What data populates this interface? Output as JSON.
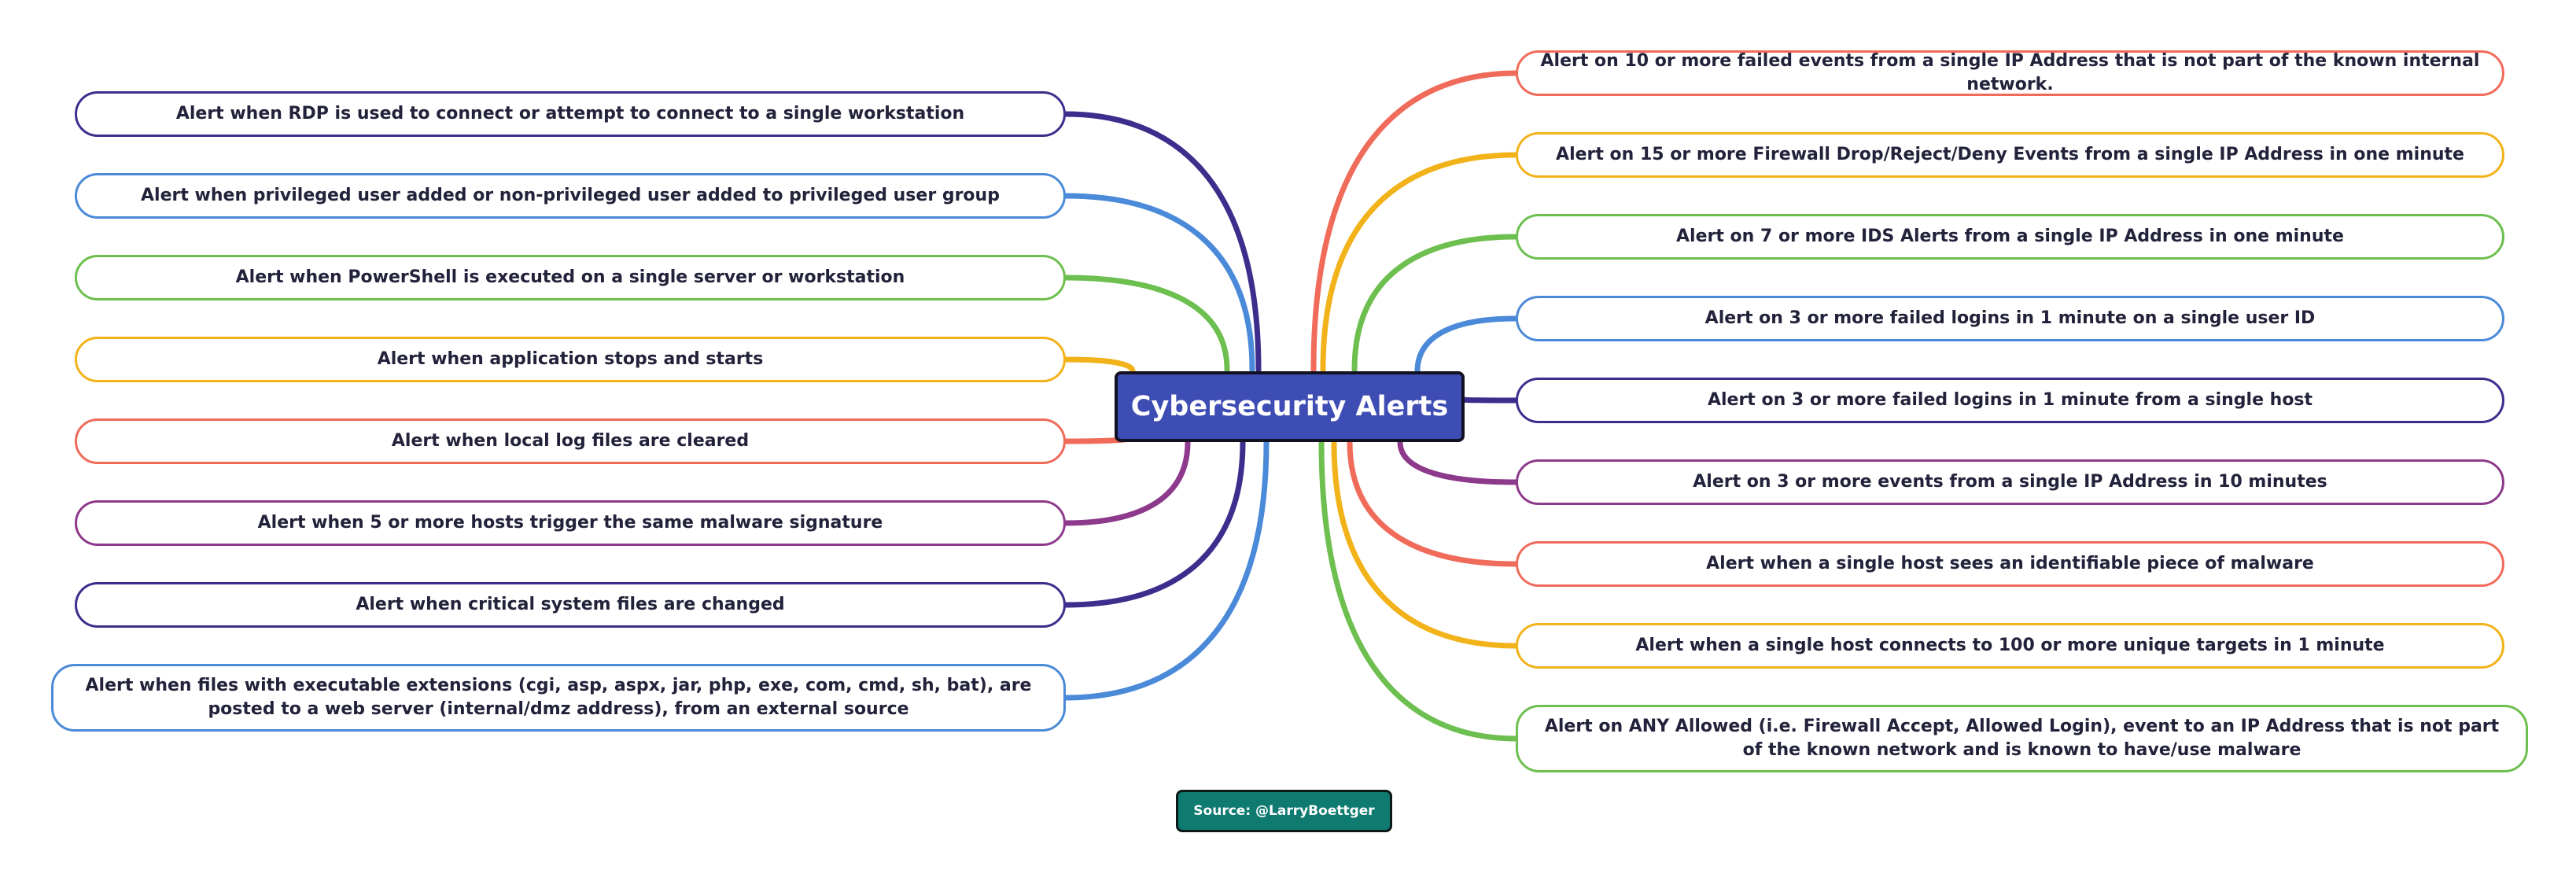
{
  "title": "Cybersecurity Alerts",
  "source": "Source: @LarryBoettger",
  "colors": {
    "center_fill": "#3e4db3",
    "source_fill": "#0e7a70",
    "navy": "#3c2e8c",
    "blue": "#4a8ad8",
    "green": "#6dbf4f",
    "yellow": "#f2b21a",
    "red": "#f06b5a",
    "purple": "#8e3a8c"
  },
  "left_alerts": [
    {
      "text": "Alert when RDP is used to connect or attempt to connect to a single workstation",
      "color": "#3c2e8c"
    },
    {
      "text": "Alert when privileged user added or non-privileged user added to privileged user group",
      "color": "#4a8ad8"
    },
    {
      "text": "Alert when PowerShell is executed on a single server or workstation",
      "color": "#6dbf4f"
    },
    {
      "text": "Alert when application stops and starts",
      "color": "#f2b21a"
    },
    {
      "text": "Alert when local log files are cleared",
      "color": "#f06b5a"
    },
    {
      "text": "Alert when 5 or more hosts trigger the same malware signature",
      "color": "#8e3a8c"
    },
    {
      "text": "Alert when critical system files are changed",
      "color": "#3c2e8c"
    },
    {
      "text": "Alert when files with executable extensions (cgi, asp, aspx, jar, php, exe, com, cmd, sh, bat), are posted to a web server (internal/dmz address), from an external source",
      "color": "#4a8ad8"
    }
  ],
  "right_alerts": [
    {
      "text": "Alert on 10 or more failed events from a single IP Address that is not part of the known internal network.",
      "color": "#f06b5a"
    },
    {
      "text": "Alert on 15 or more Firewall Drop/Reject/Deny Events from a single IP Address in one minute",
      "color": "#f2b21a"
    },
    {
      "text": "Alert on 7 or more IDS Alerts from a single IP Address in one minute",
      "color": "#6dbf4f"
    },
    {
      "text": "Alert on 3 or more failed logins in 1 minute on a single user ID",
      "color": "#4a8ad8"
    },
    {
      "text": "Alert on 3 or more failed logins in 1 minute from a single host",
      "color": "#3c2e8c"
    },
    {
      "text": "Alert on 3 or more events from a single IP Address in 10 minutes",
      "color": "#8e3a8c"
    },
    {
      "text": "Alert when a single host sees an identifiable piece of malware",
      "color": "#f06b5a"
    },
    {
      "text": "Alert when a single host connects to 100 or more unique targets in 1 minute",
      "color": "#f2b21a"
    },
    {
      "text": "Alert on ANY Allowed (i.e. Firewall Accept, Allowed Login), event to an IP Address that is not part of the known network and is known to have/use malware",
      "color": "#6dbf4f"
    }
  ]
}
